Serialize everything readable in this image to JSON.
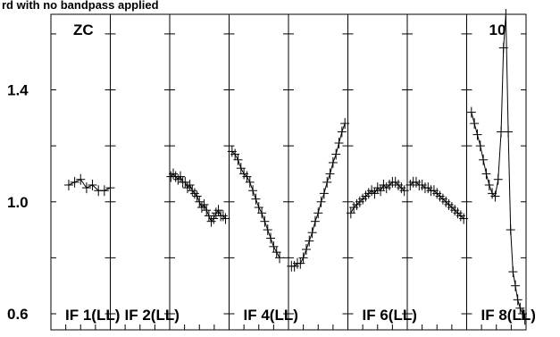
{
  "chart_data": {
    "type": "line",
    "title": "rd with no bandpass applied",
    "ylim": [
      0.6,
      1.67
    ],
    "y_ticks": [
      0.6,
      1.0,
      1.4
    ],
    "y_tick_labels": [
      "0.6",
      "1.0",
      "1.4"
    ],
    "panels": [
      {
        "label": "ZC",
        "ifl": "IF 1(LL)",
        "points": [
          [
            0.3,
            1.06
          ],
          [
            0.4,
            1.07
          ],
          [
            0.5,
            1.08
          ],
          [
            0.6,
            1.05
          ],
          [
            0.7,
            1.06
          ],
          [
            0.8,
            1.04
          ],
          [
            0.9,
            1.04
          ],
          [
            1.0,
            1.05
          ]
        ]
      },
      {
        "label": "",
        "ifl": "IF 2(LL)",
        "points": []
      },
      {
        "label": "",
        "ifl": "",
        "points": [
          [
            0.02,
            1.09
          ],
          [
            0.06,
            1.1
          ],
          [
            0.1,
            1.09
          ],
          [
            0.14,
            1.08
          ],
          [
            0.18,
            1.09
          ],
          [
            0.22,
            1.07
          ],
          [
            0.26,
            1.07
          ],
          [
            0.3,
            1.05
          ],
          [
            0.34,
            1.06
          ],
          [
            0.38,
            1.04
          ],
          [
            0.42,
            1.03
          ],
          [
            0.46,
            1.02
          ],
          [
            0.5,
            1.0
          ],
          [
            0.54,
            0.98
          ],
          [
            0.58,
            0.99
          ],
          [
            0.62,
            0.97
          ],
          [
            0.66,
            0.95
          ],
          [
            0.7,
            0.93
          ],
          [
            0.74,
            0.94
          ],
          [
            0.78,
            0.96
          ],
          [
            0.82,
            0.97
          ],
          [
            0.86,
            0.95
          ],
          [
            0.9,
            0.95
          ],
          [
            0.94,
            0.94
          ]
        ]
      },
      {
        "label": "",
        "ifl": "IF 4(LL)",
        "points": [
          [
            0.05,
            1.18
          ],
          [
            0.1,
            1.17
          ],
          [
            0.15,
            1.15
          ],
          [
            0.2,
            1.12
          ],
          [
            0.25,
            1.1
          ],
          [
            0.3,
            1.09
          ],
          [
            0.35,
            1.07
          ],
          [
            0.4,
            1.04
          ],
          [
            0.45,
            1.01
          ],
          [
            0.5,
            0.98
          ],
          [
            0.55,
            0.96
          ],
          [
            0.6,
            0.93
          ],
          [
            0.65,
            0.9
          ],
          [
            0.7,
            0.87
          ],
          [
            0.75,
            0.84
          ],
          [
            0.8,
            0.82
          ],
          [
            0.85,
            0.8
          ]
        ]
      },
      {
        "label": "",
        "ifl": "",
        "points": [
          [
            0.05,
            0.77
          ],
          [
            0.1,
            0.77
          ],
          [
            0.15,
            0.78
          ],
          [
            0.2,
            0.78
          ],
          [
            0.25,
            0.8
          ],
          [
            0.3,
            0.83
          ],
          [
            0.35,
            0.86
          ],
          [
            0.4,
            0.89
          ],
          [
            0.45,
            0.93
          ],
          [
            0.5,
            0.96
          ],
          [
            0.55,
            1.0
          ],
          [
            0.6,
            1.03
          ],
          [
            0.65,
            1.07
          ],
          [
            0.7,
            1.1
          ],
          [
            0.75,
            1.14
          ],
          [
            0.8,
            1.17
          ],
          [
            0.85,
            1.21
          ],
          [
            0.9,
            1.25
          ],
          [
            0.95,
            1.28
          ]
        ]
      },
      {
        "label": "",
        "ifl": "IF 6(LL)",
        "points": [
          [
            0.05,
            0.96
          ],
          [
            0.1,
            0.98
          ],
          [
            0.15,
            0.99
          ],
          [
            0.2,
            1.0
          ],
          [
            0.25,
            1.01
          ],
          [
            0.3,
            1.02
          ],
          [
            0.35,
            1.03
          ],
          [
            0.4,
            1.04
          ],
          [
            0.45,
            1.03
          ],
          [
            0.5,
            1.05
          ],
          [
            0.55,
            1.04
          ],
          [
            0.6,
            1.06
          ],
          [
            0.65,
            1.05
          ],
          [
            0.7,
            1.06
          ],
          [
            0.75,
            1.07
          ],
          [
            0.8,
            1.07
          ],
          [
            0.85,
            1.06
          ],
          [
            0.9,
            1.05
          ],
          [
            0.95,
            1.04
          ]
        ]
      },
      {
        "label": "",
        "ifl": "",
        "points": [
          [
            0.05,
            1.06
          ],
          [
            0.1,
            1.07
          ],
          [
            0.15,
            1.07
          ],
          [
            0.2,
            1.06
          ],
          [
            0.25,
            1.06
          ],
          [
            0.3,
            1.05
          ],
          [
            0.35,
            1.05
          ],
          [
            0.4,
            1.04
          ],
          [
            0.45,
            1.04
          ],
          [
            0.5,
            1.03
          ],
          [
            0.55,
            1.02
          ],
          [
            0.6,
            1.01
          ],
          [
            0.65,
            1.0
          ],
          [
            0.7,
            0.99
          ],
          [
            0.75,
            0.98
          ],
          [
            0.8,
            0.97
          ],
          [
            0.85,
            0.96
          ],
          [
            0.9,
            0.95
          ],
          [
            0.95,
            0.94
          ]
        ]
      },
      {
        "label": "10",
        "ifl": "IF 8(LL)",
        "points": [
          [
            0.08,
            1.32
          ],
          [
            0.13,
            1.28
          ],
          [
            0.18,
            1.24
          ],
          [
            0.23,
            1.2
          ],
          [
            0.28,
            1.15
          ],
          [
            0.33,
            1.1
          ],
          [
            0.38,
            1.06
          ],
          [
            0.43,
            1.03
          ],
          [
            0.48,
            1.02
          ],
          [
            0.53,
            1.08
          ],
          [
            0.58,
            1.25
          ],
          [
            0.62,
            1.55
          ],
          [
            0.66,
            1.67
          ],
          [
            0.7,
            1.25
          ],
          [
            0.74,
            0.9
          ],
          [
            0.78,
            0.75
          ],
          [
            0.82,
            0.7
          ],
          [
            0.86,
            0.65
          ],
          [
            0.9,
            0.62
          ],
          [
            0.94,
            0.6
          ],
          [
            0.98,
            0.58
          ]
        ]
      }
    ]
  }
}
